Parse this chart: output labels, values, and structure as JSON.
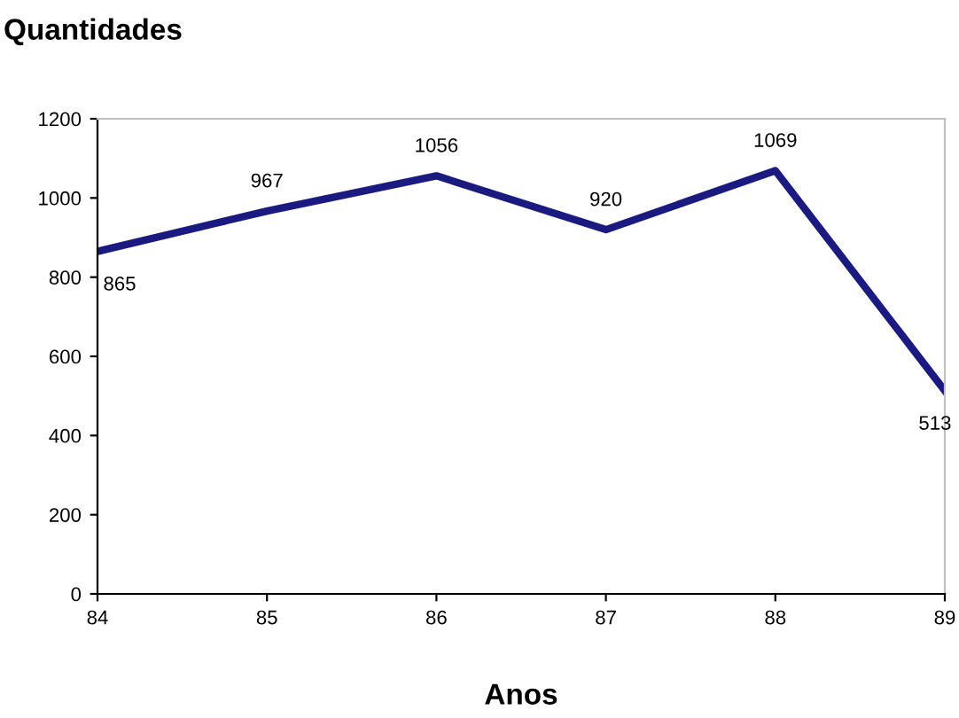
{
  "chart_data": {
    "type": "line",
    "title": "Quantidades",
    "xlabel": "Anos",
    "x": [
      84,
      85,
      86,
      87,
      88,
      89
    ],
    "series": [
      {
        "color": "#1a1a80",
        "values": [
          865,
          967,
          1056,
          920,
          1069,
          513
        ]
      }
    ],
    "xlim": [
      84,
      89
    ],
    "xticks": [
      84,
      85,
      86,
      87,
      88,
      89
    ],
    "ylim": [
      0,
      1200
    ],
    "yticks": [
      0,
      200,
      400,
      600,
      800,
      1000,
      1200
    ],
    "data_labels": true,
    "grid": false,
    "legend": false,
    "marker": "none",
    "line_style": "solid"
  }
}
